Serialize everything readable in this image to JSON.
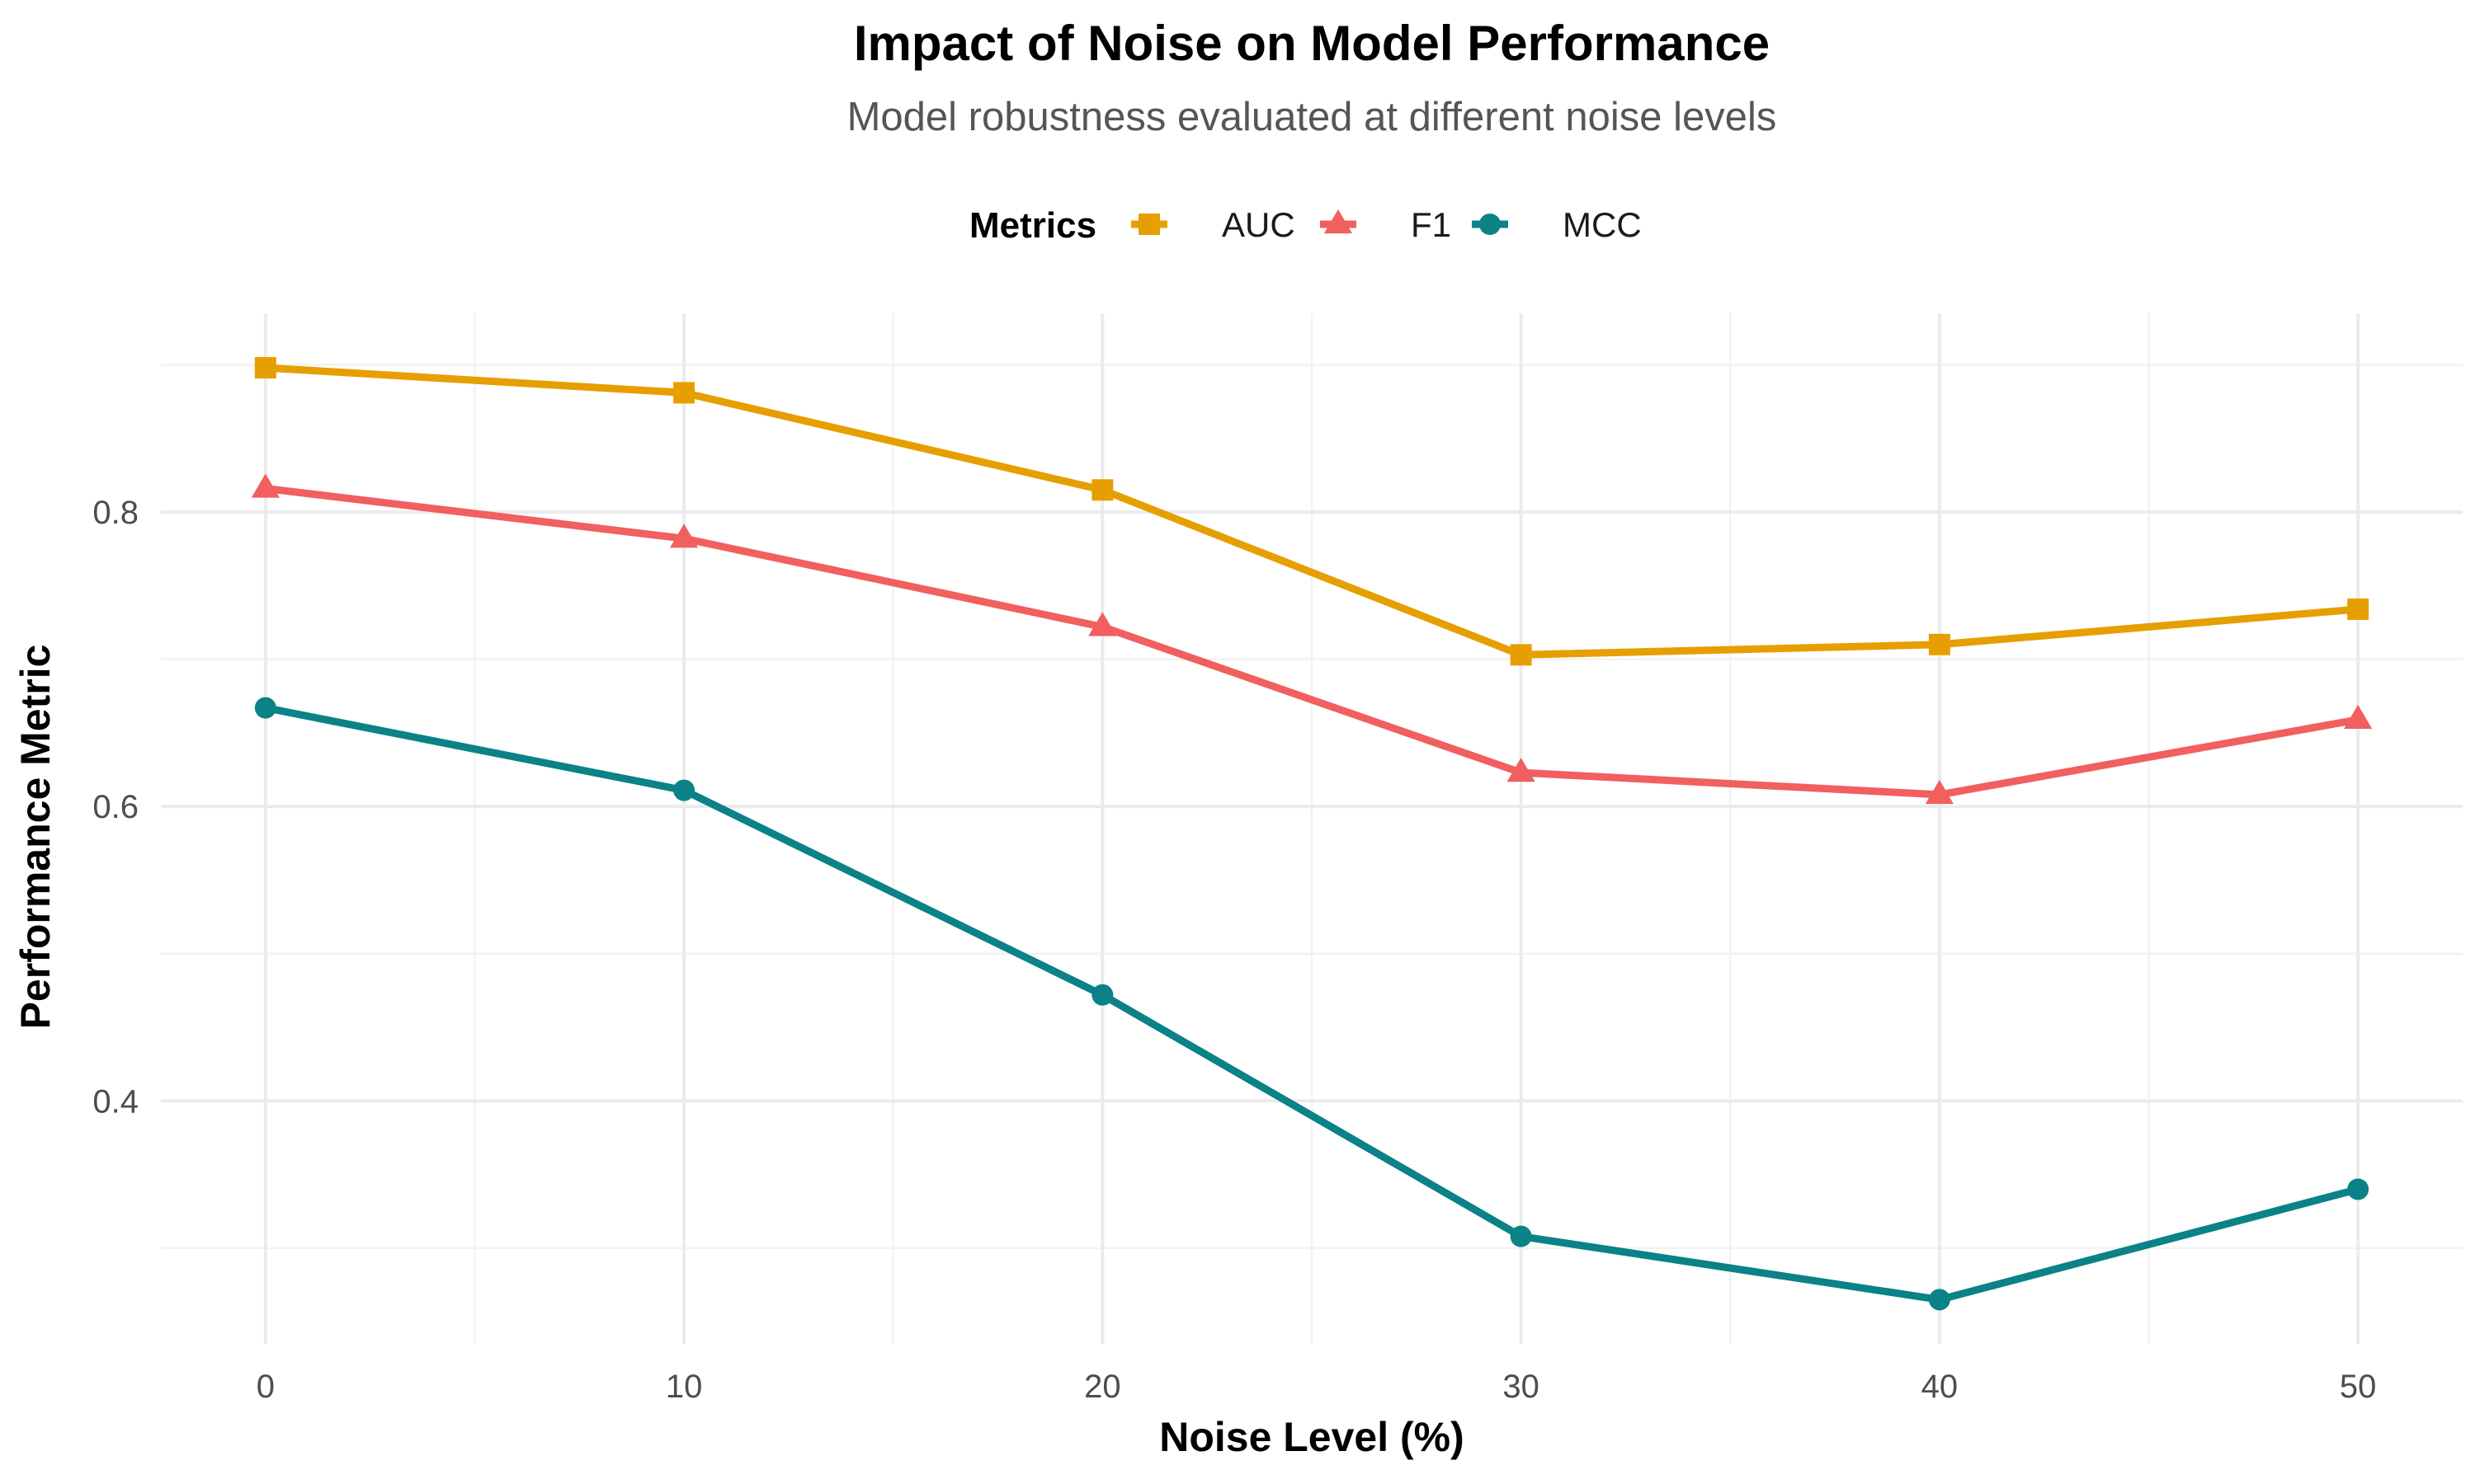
{
  "chart_data": {
    "type": "line",
    "title": "Impact of Noise on Model Performance",
    "subtitle": "Model robustness evaluated at different noise levels",
    "xlabel": "Noise Level (%)",
    "ylabel": "Performance Metric",
    "x": [
      0,
      10,
      20,
      30,
      40,
      50
    ],
    "x_ticks": [
      0,
      10,
      20,
      30,
      40,
      50
    ],
    "y_ticks": [
      0.4,
      0.6,
      0.8
    ],
    "xlim": [
      -2.5,
      52.5
    ],
    "ylim": [
      0.235,
      0.935
    ],
    "grid": true,
    "legend": {
      "title": "Metrics",
      "position": "top"
    },
    "series": [
      {
        "name": "AUC",
        "color": "#E69F00",
        "marker": "square",
        "values": [
          0.898,
          0.881,
          0.815,
          0.703,
          0.71,
          0.734
        ]
      },
      {
        "name": "F1",
        "color": "#F15F5F",
        "marker": "triangle",
        "values": [
          0.816,
          0.782,
          0.722,
          0.623,
          0.608,
          0.659
        ]
      },
      {
        "name": "MCC",
        "color": "#0A8287",
        "marker": "circle",
        "values": [
          0.667,
          0.611,
          0.472,
          0.308,
          0.265,
          0.34
        ]
      }
    ]
  }
}
